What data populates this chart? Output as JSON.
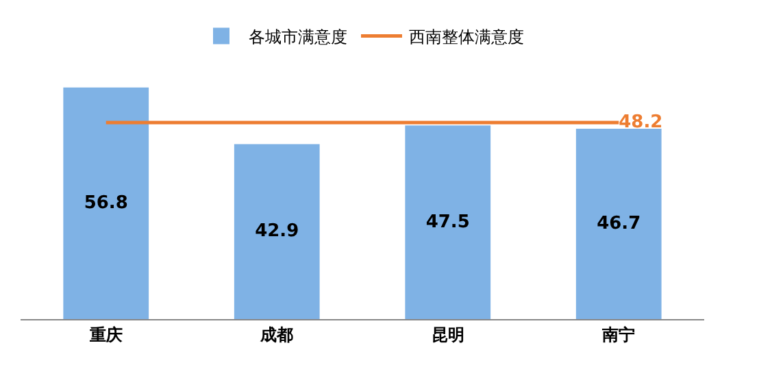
{
  "chart_data": {
    "type": "bar",
    "categories": [
      "重庆",
      "成都",
      "昆明",
      "南宁"
    ],
    "tick_labels": "x",
    "grid": false,
    "legend": "top",
    "series": [
      {
        "name": "各城市满意度",
        "color": "#7fb2e5",
        "values": [
          56.8,
          42.9,
          47.5,
          46.7
        ],
        "value_labels": [
          "56.8",
          "42.9",
          "47.5",
          "46.7"
        ]
      },
      {
        "name": "西南整体满意度",
        "type": "line",
        "color": "#ed7d31",
        "values": [
          48.2,
          48.2,
          48.2,
          48.2
        ],
        "value_labels": [
          null,
          null,
          null,
          "48.2"
        ]
      }
    ]
  }
}
